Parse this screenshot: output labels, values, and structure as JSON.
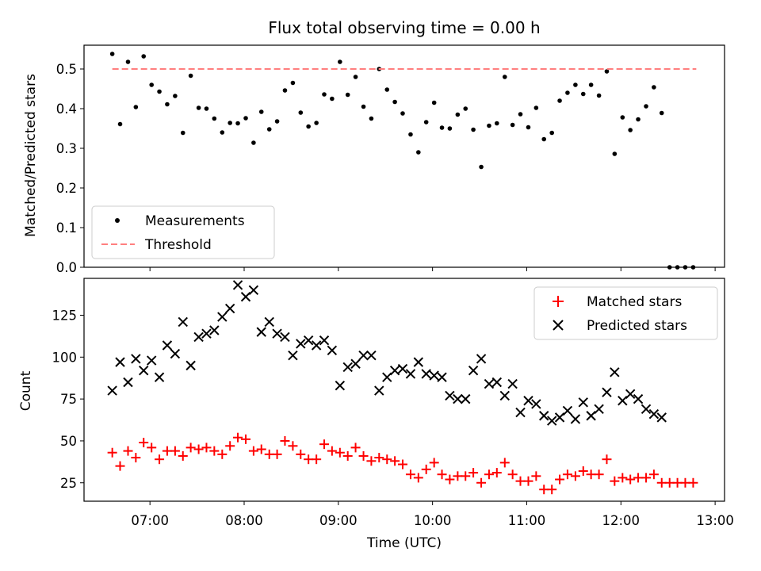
{
  "chart_data": [
    {
      "type": "scatter",
      "title": "Flux total observing time = 0.00 h",
      "xlabel": "",
      "ylabel": "Matched/Predicted stars",
      "xlim": [
        6.3,
        13.1
      ],
      "ylim": [
        0,
        0.56
      ],
      "yticks": [
        0.0,
        0.1,
        0.2,
        0.3,
        0.4,
        0.5
      ],
      "ytick_labels": [
        "0.0",
        "0.1",
        "0.2",
        "0.3",
        "0.4",
        "0.5"
      ],
      "legend_position": "lower-left",
      "series": [
        {
          "name": "Measurements",
          "marker": "dot",
          "color": "#000000",
          "x": [
            6.6,
            6.683,
            6.767,
            6.85,
            6.933,
            7.017,
            7.1,
            7.183,
            7.267,
            7.35,
            7.433,
            7.517,
            7.6,
            7.683,
            7.767,
            7.85,
            7.933,
            8.017,
            8.1,
            8.183,
            8.267,
            8.35,
            8.433,
            8.517,
            8.6,
            8.683,
            8.767,
            8.85,
            8.933,
            9.017,
            9.1,
            9.183,
            9.267,
            9.35,
            9.433,
            9.517,
            9.6,
            9.683,
            9.767,
            9.85,
            9.933,
            10.017,
            10.1,
            10.183,
            10.267,
            10.35,
            10.433,
            10.517,
            10.6,
            10.683,
            10.767,
            10.85,
            10.933,
            11.017,
            11.1,
            11.183,
            11.267,
            11.35,
            11.433,
            11.517,
            11.6,
            11.683,
            11.767,
            11.85,
            11.933,
            12.017,
            12.1,
            12.183,
            12.267,
            12.35,
            12.433,
            12.517,
            12.6,
            12.683,
            12.767
          ],
          "y": [
            0.538,
            0.361,
            0.518,
            0.404,
            0.532,
            0.46,
            0.443,
            0.411,
            0.432,
            0.339,
            0.483,
            0.402,
            0.4,
            0.375,
            0.34,
            0.364,
            0.363,
            0.376,
            0.314,
            0.392,
            0.348,
            0.368,
            0.446,
            0.465,
            0.39,
            0.355,
            0.364,
            0.436,
            0.425,
            0.518,
            0.435,
            0.48,
            0.405,
            0.375,
            0.5,
            0.448,
            0.417,
            0.388,
            0.335,
            0.29,
            0.366,
            0.415,
            0.352,
            0.35,
            0.385,
            0.4,
            0.347,
            0.253,
            0.357,
            0.363,
            0.48,
            0.359,
            0.386,
            0.353,
            0.402,
            0.323,
            0.339,
            0.42,
            0.44,
            0.46,
            0.437,
            0.46,
            0.433,
            0.494,
            0.286,
            0.378,
            0.346,
            0.373,
            0.406,
            0.454,
            0.389,
            0,
            0,
            0,
            0
          ]
        },
        {
          "name": "Threshold",
          "marker": "dashed-line",
          "color": "#ff7f7f",
          "x": [
            6.6,
            12.8
          ],
          "y": [
            0.5,
            0.5
          ]
        }
      ]
    },
    {
      "type": "scatter",
      "title": "",
      "xlabel": "Time (UTC)",
      "ylabel": "Count",
      "xlim": [
        6.3,
        13.1
      ],
      "ylim": [
        14,
        147
      ],
      "yticks": [
        25,
        50,
        75,
        100,
        125
      ],
      "ytick_labels": [
        "25",
        "50",
        "75",
        "100",
        "125"
      ],
      "xticks": [
        7,
        8,
        9,
        10,
        11,
        12,
        13
      ],
      "xtick_labels": [
        "07:00",
        "08:00",
        "09:00",
        "10:00",
        "11:00",
        "12:00",
        "13:00"
      ],
      "legend_position": "top-right",
      "series": [
        {
          "name": "Matched stars",
          "marker": "plus",
          "color": "#ff0000",
          "x": [
            6.6,
            6.683,
            6.767,
            6.85,
            6.933,
            7.017,
            7.1,
            7.183,
            7.267,
            7.35,
            7.433,
            7.517,
            7.6,
            7.683,
            7.767,
            7.85,
            7.933,
            8.017,
            8.1,
            8.183,
            8.267,
            8.35,
            8.433,
            8.517,
            8.6,
            8.683,
            8.767,
            8.85,
            8.933,
            9.017,
            9.1,
            9.183,
            9.267,
            9.35,
            9.433,
            9.517,
            9.6,
            9.683,
            9.767,
            9.85,
            9.933,
            10.017,
            10.1,
            10.183,
            10.267,
            10.35,
            10.433,
            10.517,
            10.6,
            10.683,
            10.767,
            10.85,
            10.933,
            11.017,
            11.1,
            11.183,
            11.267,
            11.35,
            11.433,
            11.517,
            11.6,
            11.683,
            11.767,
            11.85,
            11.933,
            12.017,
            12.1,
            12.183,
            12.267,
            12.35,
            12.433,
            12.517,
            12.6,
            12.683,
            12.767
          ],
          "y": [
            43,
            35,
            44,
            40,
            49,
            46,
            39,
            44,
            44,
            41,
            46,
            45,
            46,
            44,
            42,
            47,
            52,
            51,
            44,
            45,
            42,
            42,
            50,
            47,
            42,
            39,
            39,
            48,
            44,
            43,
            41,
            46,
            41,
            38,
            40,
            39,
            38,
            36,
            30,
            28,
            33,
            37,
            30,
            27,
            29,
            29,
            31,
            25,
            30,
            31,
            37,
            30,
            26,
            26,
            29,
            21,
            21,
            27,
            30,
            29,
            32,
            30,
            30,
            39,
            26,
            28,
            27,
            28,
            28,
            30,
            25,
            25,
            25,
            25,
            25
          ]
        },
        {
          "name": "Predicted stars",
          "marker": "x",
          "color": "#000000",
          "x": [
            6.6,
            6.683,
            6.767,
            6.85,
            6.933,
            7.017,
            7.1,
            7.183,
            7.267,
            7.35,
            7.433,
            7.517,
            7.6,
            7.683,
            7.767,
            7.85,
            7.933,
            8.017,
            8.1,
            8.183,
            8.267,
            8.35,
            8.433,
            8.517,
            8.6,
            8.683,
            8.767,
            8.85,
            8.933,
            9.017,
            9.1,
            9.183,
            9.267,
            9.35,
            9.433,
            9.517,
            9.6,
            9.683,
            9.767,
            9.85,
            9.933,
            10.017,
            10.1,
            10.183,
            10.267,
            10.35,
            10.433,
            10.517,
            10.6,
            10.683,
            10.767,
            10.85,
            10.933,
            11.017,
            11.1,
            11.183,
            11.267,
            11.35,
            11.433,
            11.517,
            11.6,
            11.683,
            11.767,
            11.85,
            11.933,
            12.017,
            12.1,
            12.183,
            12.267,
            12.35,
            12.433
          ],
          "y": [
            80,
            97,
            85,
            99,
            92,
            98,
            88,
            107,
            102,
            121,
            95,
            112,
            114,
            116,
            124,
            129,
            143,
            136,
            140,
            115,
            121,
            114,
            112,
            101,
            108,
            110,
            107,
            110,
            104,
            83,
            94,
            96,
            101,
            101,
            80,
            88,
            92,
            93,
            90,
            97,
            90,
            89,
            88,
            77,
            75,
            75,
            92,
            99,
            84,
            85,
            77,
            84,
            67,
            74,
            72,
            65,
            62,
            64,
            68,
            63,
            73,
            65,
            69,
            79,
            91,
            74,
            78,
            75,
            69,
            66,
            64
          ]
        }
      ]
    }
  ]
}
